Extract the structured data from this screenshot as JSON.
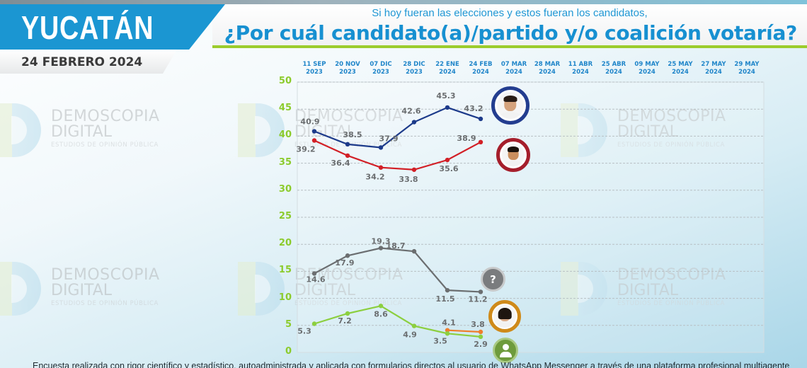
{
  "header": {
    "state": "YUCATÁN",
    "date": "24 FEBRERO 2024",
    "subtitle": "Si hoy fueran las elecciones y estos fueran los candidatos,",
    "question": "¿Por cuál candidato(a)/partido y/o coalición votaría?"
  },
  "watermark": {
    "line1": "DEMOSCOPIA",
    "line2": "DIGITAL",
    "line3": "ESTUDIOS DE OPINIÓN PÚBLICA"
  },
  "x_categories": [
    {
      "day": "11 SEP",
      "year": "2023"
    },
    {
      "day": "20 NOV",
      "year": "2023"
    },
    {
      "day": "07 DIC",
      "year": "2023"
    },
    {
      "day": "28 DIC",
      "year": "2023"
    },
    {
      "day": "22 ENE",
      "year": "2024"
    },
    {
      "day": "24 FEB",
      "year": "2024"
    },
    {
      "day": "07 MAR",
      "year": "2024"
    },
    {
      "day": "28 MAR",
      "year": "2024"
    },
    {
      "day": "11 ABR",
      "year": "2024"
    },
    {
      "day": "25 ABR",
      "year": "2024"
    },
    {
      "day": "09 MAY",
      "year": "2024"
    },
    {
      "day": "25 MAY",
      "year": "2024"
    },
    {
      "day": "27 MAY",
      "year": "2024"
    },
    {
      "day": "29 MAY",
      "year": "2024"
    }
  ],
  "y_ticks": [
    "50",
    "45",
    "40",
    "35",
    "30",
    "25",
    "20",
    "15",
    "10",
    "5",
    "0"
  ],
  "chart_data": {
    "type": "line",
    "title": "¿Por cuál candidato(a)/partido y/o coalición votaría?",
    "subtitle": "Si hoy fueran las elecciones y estos fueran los candidatos,",
    "xlabel": "",
    "ylabel": "",
    "ylim": [
      0,
      50
    ],
    "grid": true,
    "categories": [
      "11 SEP 2023",
      "20 NOV 2023",
      "07 DIC 2023",
      "28 DIC 2023",
      "22 ENE 2024",
      "24 FEB 2024",
      "07 MAR 2024",
      "28 MAR 2024",
      "11 ABR 2024",
      "25 ABR 2024",
      "09 MAY 2024",
      "25 MAY 2024",
      "27 MAY 2024",
      "29 MAY 2024"
    ],
    "series": [
      {
        "name": "Candidato azul (foto)",
        "color": "#1c3a8a",
        "values": [
          40.9,
          38.5,
          37.9,
          42.6,
          45.3,
          43.2,
          null,
          null,
          null,
          null,
          null,
          null,
          null,
          null
        ]
      },
      {
        "name": "Candidato rojo (foto)",
        "color": "#d21f26",
        "values": [
          39.2,
          36.4,
          34.2,
          33.8,
          35.6,
          38.9,
          null,
          null,
          null,
          null,
          null,
          null,
          null,
          null
        ]
      },
      {
        "name": "No sabe / indeciso (?)",
        "color": "#6b6e70",
        "values": [
          14.6,
          17.9,
          19.3,
          18.7,
          11.5,
          11.2,
          null,
          null,
          null,
          null,
          null,
          null,
          null,
          null
        ]
      },
      {
        "name": "Candidata naranja (foto)",
        "color": "#ef7d2c",
        "values": [
          null,
          null,
          null,
          null,
          4.1,
          3.8,
          null,
          null,
          null,
          null,
          null,
          null,
          null,
          null
        ]
      },
      {
        "name": "Otro (icono usuario)",
        "color": "#8ccf3f",
        "values": [
          5.3,
          7.2,
          8.6,
          4.9,
          3.5,
          2.9,
          null,
          null,
          null,
          null,
          null,
          null,
          null,
          null
        ]
      }
    ]
  },
  "legend_markers": {
    "blue_ring": "#233d8f",
    "red_ring": "#a51e2b",
    "unknown_bg": "#7a7c7e",
    "unknown_glyph": "?",
    "orange_ring": "#cf8a1a",
    "green_bg": "#6e9b3c"
  },
  "footer": {
    "text": "Encuesta realizada con rigor científico y estadístico, autoadministrada y aplicada con formularios directos al usuario de WhatsApp Messenger a través de una plataforma profesional multiagente"
  }
}
